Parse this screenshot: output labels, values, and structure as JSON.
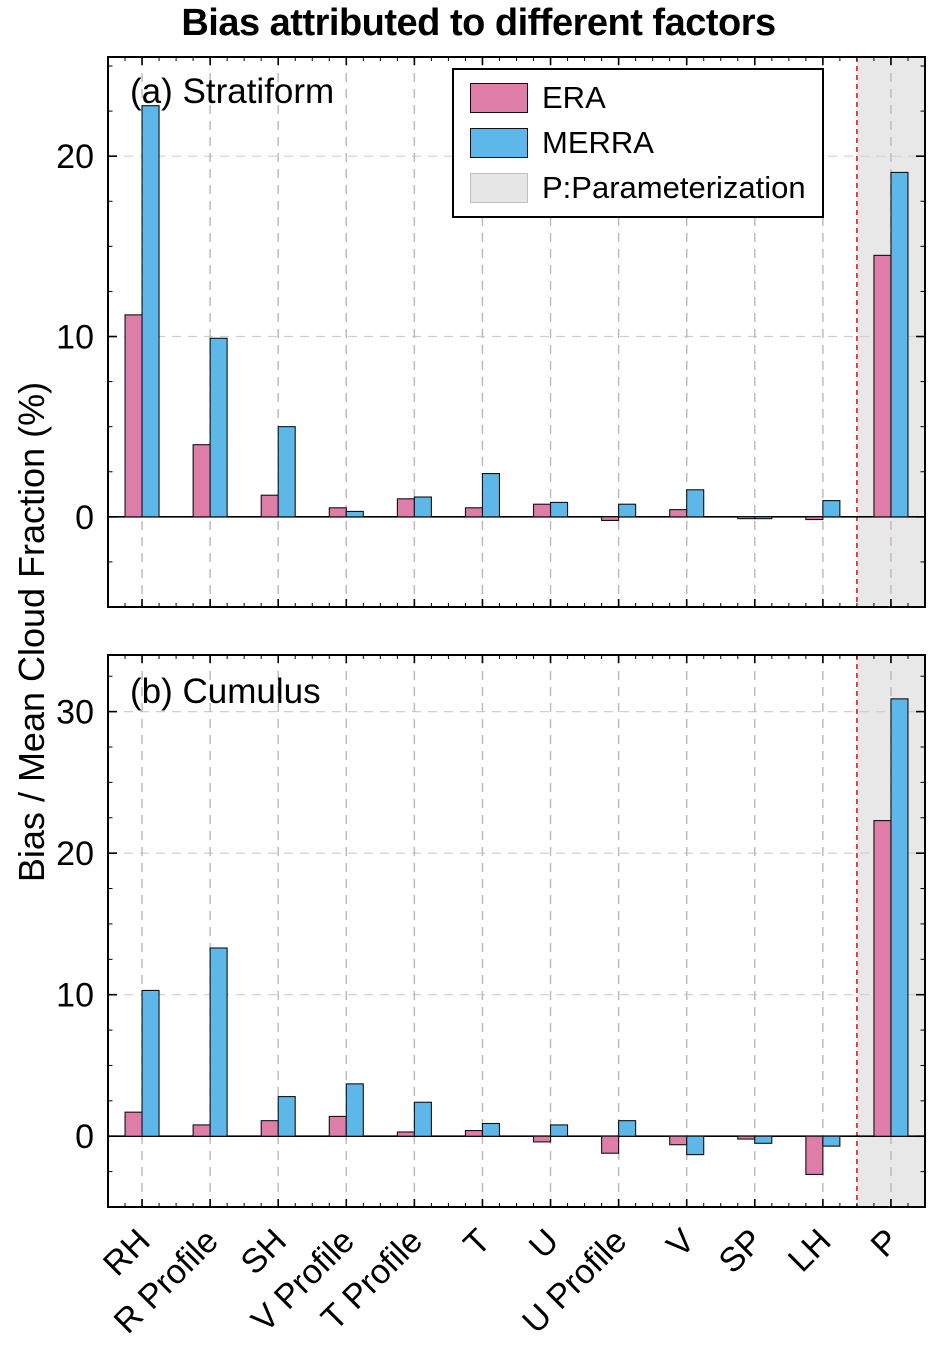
{
  "title": "Bias attributed to different factors",
  "ylabel": "Bias / Mean Cloud Fraction (%)",
  "legend": {
    "era": "ERA",
    "merra": "MERRA",
    "param": "P:Parameterization"
  },
  "colors": {
    "era": "#de7da8",
    "merra": "#5db7e8",
    "shade": "#e8e8e8",
    "redline": "#e02020"
  },
  "chart_data": [
    {
      "type": "bar",
      "panel_label": "(a) Stratiform",
      "categories": [
        "RH",
        "R Profile",
        "SH",
        "V Profile",
        "T Profile",
        "T",
        "U",
        "U Profile",
        "V",
        "SP",
        "LH",
        "P"
      ],
      "series": [
        {
          "name": "ERA",
          "values": [
            11.2,
            4.0,
            1.2,
            0.5,
            1.0,
            0.5,
            0.7,
            -0.2,
            0.4,
            -0.1,
            -0.15,
            14.5
          ]
        },
        {
          "name": "MERRA",
          "values": [
            22.8,
            9.9,
            5.0,
            0.3,
            1.1,
            2.4,
            0.8,
            0.7,
            1.5,
            -0.1,
            0.9,
            19.1
          ]
        }
      ],
      "ylim": [
        -5,
        25.5
      ],
      "yticks": [
        0,
        10,
        20
      ],
      "grid": true,
      "legend_position": "top-center",
      "shaded_category": "P"
    },
    {
      "type": "bar",
      "panel_label": "(b) Cumulus",
      "categories": [
        "RH",
        "R Profile",
        "SH",
        "V Profile",
        "T Profile",
        "T",
        "U",
        "U Profile",
        "V",
        "SP",
        "LH",
        "P"
      ],
      "series": [
        {
          "name": "ERA",
          "values": [
            1.7,
            0.8,
            1.1,
            1.4,
            0.3,
            0.4,
            -0.4,
            -1.2,
            -0.6,
            -0.2,
            -2.7,
            22.3
          ]
        },
        {
          "name": "MERRA",
          "values": [
            10.3,
            13.3,
            2.8,
            3.7,
            2.4,
            0.9,
            0.8,
            1.1,
            -1.3,
            -0.5,
            -0.7,
            30.9
          ]
        }
      ],
      "ylim": [
        -5,
        34
      ],
      "yticks": [
        0,
        10,
        20,
        30
      ],
      "grid": true,
      "shaded_category": "P"
    }
  ]
}
